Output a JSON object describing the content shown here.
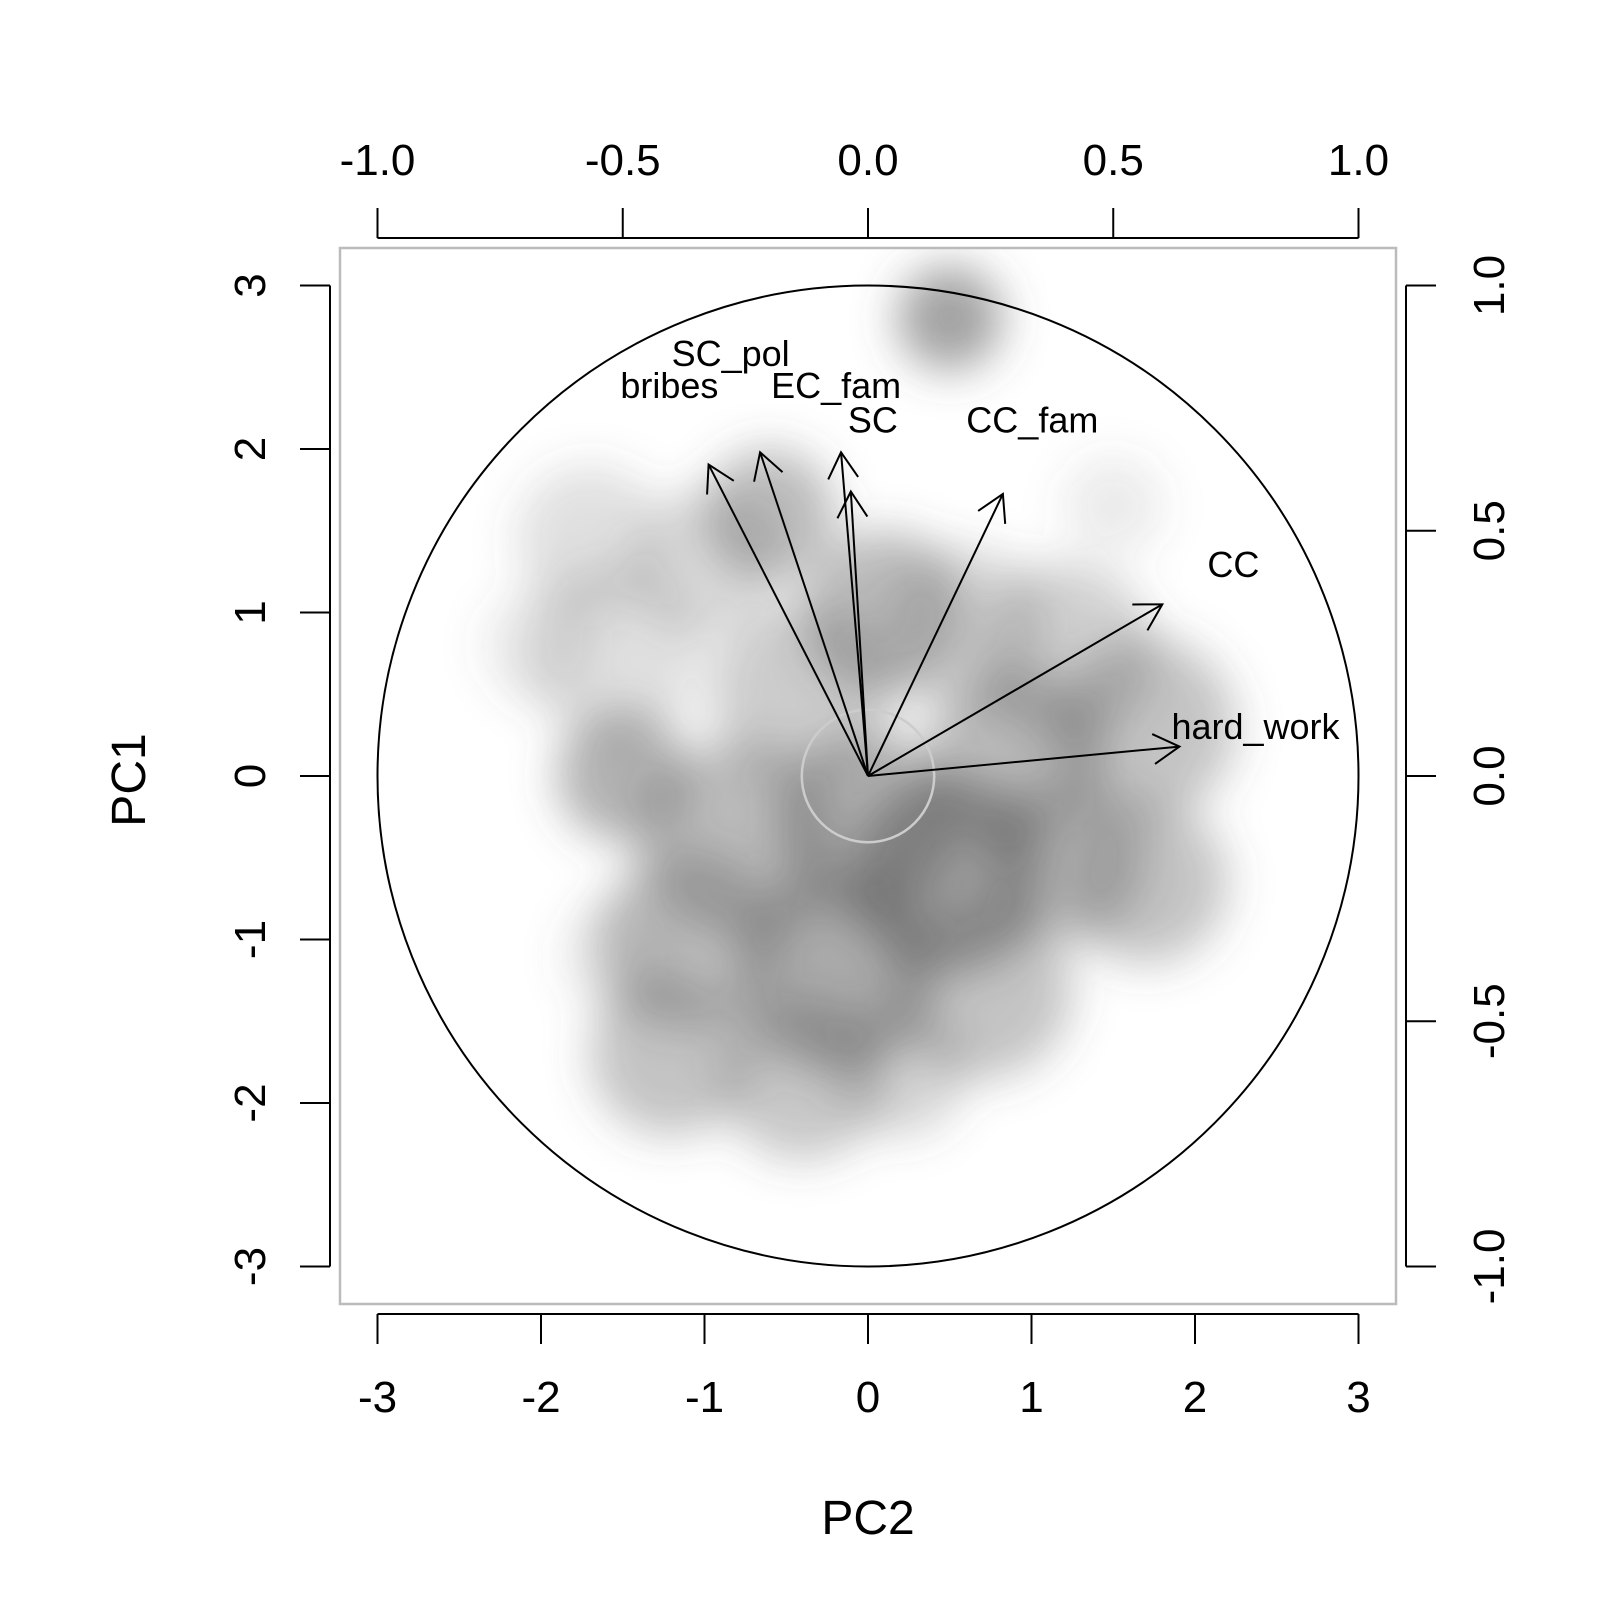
{
  "chart_data": {
    "type": "scatter",
    "subtype": "pca-biplot-density",
    "xlabel": "PC2",
    "ylabel": "PC1",
    "xlim": [
      -3.25,
      3.25
    ],
    "ylim": [
      -3.25,
      3.25
    ],
    "x_ticks": [
      "-3",
      "-2",
      "-1",
      "0",
      "1",
      "2",
      "3"
    ],
    "y_ticks": [
      "-3",
      "-2",
      "-1",
      "0",
      "1",
      "2",
      "3"
    ],
    "secondary_x_ticks": [
      "-1.0",
      "-0.5",
      "0.0",
      "0.5",
      "1.0"
    ],
    "secondary_y_ticks": [
      "-1.0",
      "-0.5",
      "0.0",
      "0.5",
      "1.0"
    ],
    "secondary_scale": 3,
    "grid": false,
    "colors": {
      "axis": "#000000",
      "frame": "#bbbbbb",
      "density": "#555555",
      "inner_circle": "#cccccc"
    },
    "unit_circle_radius": 1.0,
    "inner_circle_radius": 0.135,
    "loadings": [
      {
        "name": "SC_pol",
        "x": -0.325,
        "y": 0.635
      },
      {
        "name": "bribes",
        "x": -0.22,
        "y": 0.66
      },
      {
        "name": "EC_fam",
        "x": -0.055,
        "y": 0.66
      },
      {
        "name": "SC",
        "x": -0.035,
        "y": 0.58
      },
      {
        "name": "CC_fam",
        "x": 0.275,
        "y": 0.575
      },
      {
        "name": "CC",
        "x": 0.6,
        "y": 0.35
      },
      {
        "name": "hard_work",
        "x": 0.635,
        "y": 0.06
      }
    ],
    "variable_labels": [
      {
        "text": "SC_pol",
        "x": -0.28,
        "y": 0.86
      },
      {
        "text": "bribes",
        "x": -0.405,
        "y": 0.795
      },
      {
        "text": "EC_fam",
        "x": -0.065,
        "y": 0.795
      },
      {
        "text": "SC",
        "x": 0.01,
        "y": 0.725
      },
      {
        "text": "CC_fam",
        "x": 0.335,
        "y": 0.725
      },
      {
        "text": "CC",
        "x": 0.745,
        "y": 0.43
      },
      {
        "text": "hard_work",
        "x": 0.79,
        "y": 0.1
      }
    ],
    "density_blobs": [
      {
        "x": 0.5,
        "y": 2.8,
        "r": 0.32,
        "a": 0.55
      },
      {
        "x": -1.7,
        "y": 1.45,
        "r": 0.45,
        "a": 0.18
      },
      {
        "x": -1.5,
        "y": 0.0,
        "r": 0.4,
        "a": 0.45
      },
      {
        "x": -1.55,
        "y": 0.75,
        "r": 0.55,
        "a": 0.18
      },
      {
        "x": -0.6,
        "y": 1.6,
        "r": 0.4,
        "a": 0.4
      },
      {
        "x": -1.0,
        "y": 1.3,
        "r": 0.45,
        "a": 0.22
      },
      {
        "x": 0.1,
        "y": 1.0,
        "r": 0.5,
        "a": 0.4
      },
      {
        "x": 0.6,
        "y": 0.9,
        "r": 0.5,
        "a": 0.22
      },
      {
        "x": 1.2,
        "y": 0.75,
        "r": 0.55,
        "a": 0.28
      },
      {
        "x": 1.7,
        "y": 0.3,
        "r": 0.55,
        "a": 0.35
      },
      {
        "x": 1.7,
        "y": -0.65,
        "r": 0.5,
        "a": 0.35
      },
      {
        "x": 1.5,
        "y": 1.65,
        "r": 0.3,
        "a": 0.12
      },
      {
        "x": 0.5,
        "y": -0.6,
        "r": 0.6,
        "a": 0.55
      },
      {
        "x": 0.0,
        "y": -0.3,
        "r": 0.55,
        "a": 0.45
      },
      {
        "x": -0.8,
        "y": -0.4,
        "r": 0.6,
        "a": 0.4
      },
      {
        "x": -1.1,
        "y": -1.0,
        "r": 0.55,
        "a": 0.35
      },
      {
        "x": -0.2,
        "y": -1.2,
        "r": 0.6,
        "a": 0.5
      },
      {
        "x": 0.7,
        "y": -1.3,
        "r": 0.55,
        "a": 0.35
      },
      {
        "x": -1.2,
        "y": -1.7,
        "r": 0.5,
        "a": 0.35
      },
      {
        "x": -0.4,
        "y": -1.85,
        "r": 0.5,
        "a": 0.32
      },
      {
        "x": 0.2,
        "y": -1.8,
        "r": 0.4,
        "a": 0.25
      },
      {
        "x": -1.5,
        "y": -1.1,
        "r": 0.35,
        "a": 0.15
      },
      {
        "x": 0.9,
        "y": 0.1,
        "r": 0.55,
        "a": 0.4
      },
      {
        "x": -0.4,
        "y": 0.5,
        "r": 0.55,
        "a": 0.3
      },
      {
        "x": 1.2,
        "y": -0.5,
        "r": 0.5,
        "a": 0.35
      },
      {
        "x": -2.0,
        "y": 0.8,
        "r": 0.35,
        "a": 0.12
      }
    ]
  }
}
